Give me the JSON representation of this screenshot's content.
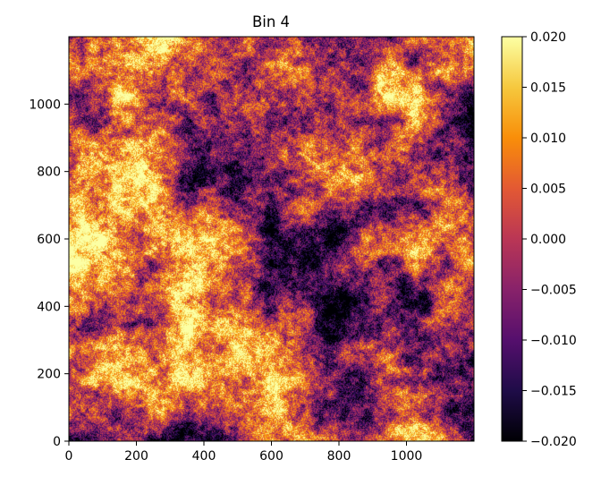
{
  "chart_data": {
    "type": "heatmap",
    "title": "Bin 4",
    "xlabel": "",
    "ylabel": "",
    "xlim": [
      0,
      1200
    ],
    "ylim": [
      0,
      1200
    ],
    "x_ticks": [
      0,
      200,
      400,
      600,
      800,
      1000
    ],
    "y_ticks": [
      0,
      200,
      400,
      600,
      800,
      1000
    ],
    "colormap": "inferno",
    "color_range": [
      -0.02,
      0.02
    ],
    "colorbar_ticks": [
      "0.020",
      "0.015",
      "0.010",
      "0.005",
      "0.000",
      "−0.005",
      "−0.010",
      "−0.015",
      "−0.020"
    ],
    "colorbar_values": [
      0.02,
      0.015,
      0.01,
      0.005,
      0.0,
      -0.005,
      -0.01,
      -0.015,
      -0.02
    ],
    "grid": false,
    "colorbar_placement": "right"
  }
}
